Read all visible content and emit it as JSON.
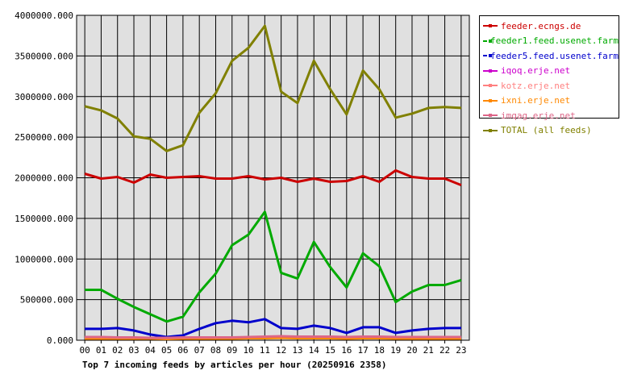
{
  "chart_data": {
    "type": "line",
    "title": "Top 7 incoming feeds by articles per hour (20250916 2358)",
    "categories": [
      "00",
      "01",
      "02",
      "03",
      "04",
      "05",
      "06",
      "07",
      "08",
      "09",
      "10",
      "11",
      "12",
      "13",
      "14",
      "15",
      "16",
      "17",
      "18",
      "19",
      "20",
      "21",
      "22",
      "23"
    ],
    "y_ticks": [
      "0.000",
      "500000.000",
      "1000000.000",
      "1500000.000",
      "2000000.000",
      "2500000.000",
      "3000000.000",
      "3500000.000",
      "4000000.000"
    ],
    "ylim": [
      0,
      4000000
    ],
    "grid": true,
    "legend_position": "right",
    "plot_background": "#e0e0e0",
    "series": [
      {
        "name": "feeder.ecngs.de",
        "color": "#cc0000",
        "values": [
          2050000,
          1990000,
          2010000,
          1940000,
          2040000,
          2000000,
          2010000,
          2020000,
          1990000,
          1990000,
          2020000,
          1980000,
          2000000,
          1950000,
          1990000,
          1950000,
          1960000,
          2020000,
          1950000,
          2090000,
          2010000,
          1990000,
          1990000,
          1910000
        ]
      },
      {
        "name": "feeder1.feed.usenet.farm",
        "color": "#00aa00",
        "values": [
          620000,
          620000,
          510000,
          410000,
          320000,
          230000,
          290000,
          590000,
          820000,
          1170000,
          1300000,
          1580000,
          830000,
          760000,
          1210000,
          900000,
          650000,
          1070000,
          910000,
          470000,
          600000,
          680000,
          680000,
          740000
        ]
      },
      {
        "name": "feeder5.feed.usenet.farm",
        "color": "#0000cc",
        "values": [
          140000,
          140000,
          150000,
          120000,
          70000,
          40000,
          60000,
          140000,
          210000,
          240000,
          220000,
          260000,
          150000,
          140000,
          180000,
          150000,
          90000,
          160000,
          160000,
          90000,
          120000,
          140000,
          150000,
          150000
        ]
      },
      {
        "name": "iqoq.erje.net",
        "color": "#cc00cc",
        "values": [
          30000,
          30000,
          30000,
          30000,
          30000,
          25000,
          30000,
          30000,
          30000,
          30000,
          35000,
          40000,
          40000,
          35000,
          35000,
          35000,
          30000,
          35000,
          35000,
          30000,
          30000,
          30000,
          30000,
          30000
        ]
      },
      {
        "name": "kotz.erje.net",
        "color": "#ff8080",
        "values": [
          25000,
          25000,
          25000,
          25000,
          25000,
          20000,
          25000,
          25000,
          25000,
          25000,
          30000,
          30000,
          35000,
          30000,
          30000,
          30000,
          25000,
          30000,
          30000,
          25000,
          25000,
          25000,
          25000,
          25000
        ]
      },
      {
        "name": "ixni.erje.net",
        "color": "#ff8800",
        "values": [
          20000,
          20000,
          20000,
          20000,
          20000,
          15000,
          20000,
          20000,
          20000,
          20000,
          25000,
          25000,
          30000,
          25000,
          25000,
          25000,
          20000,
          25000,
          25000,
          20000,
          20000,
          20000,
          20000,
          20000
        ]
      },
      {
        "name": "imqag.erje.net",
        "color": "#dd6688",
        "values": [
          40000,
          40000,
          35000,
          35000,
          30000,
          30000,
          35000,
          35000,
          35000,
          35000,
          40000,
          45000,
          50000,
          45000,
          45000,
          45000,
          40000,
          45000,
          45000,
          40000,
          40000,
          40000,
          40000,
          40000
        ]
      },
      {
        "name": "TOTAL (all feeds)",
        "color": "#808000",
        "values": [
          2880000,
          2830000,
          2730000,
          2510000,
          2480000,
          2330000,
          2400000,
          2800000,
          3040000,
          3440000,
          3600000,
          3870000,
          3060000,
          2920000,
          3440000,
          3090000,
          2780000,
          3320000,
          3090000,
          2740000,
          2790000,
          2860000,
          2870000,
          2860000
        ]
      }
    ]
  }
}
